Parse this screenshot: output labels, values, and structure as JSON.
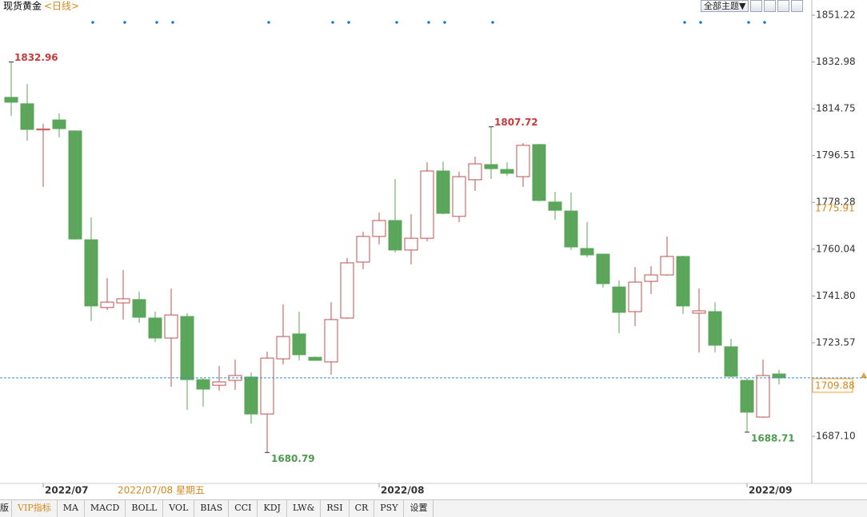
{
  "header": {
    "title": "现货黄金",
    "period": "<日线>"
  },
  "toolbar": {
    "theme": "全部主题▼"
  },
  "tabs": [
    "版",
    "VIP指标",
    "MA",
    "MACD",
    "BOLL",
    "VOL",
    "BIAS",
    "CCI",
    "KDJ",
    "LW&",
    "RSI",
    "CR",
    "PSY",
    "设置"
  ],
  "chart_data": {
    "type": "candlestick",
    "categories": [
      null,
      null,
      "2022/07",
      null,
      null,
      null,
      null,
      null,
      null,
      null,
      null,
      null,
      null,
      null,
      null,
      null,
      null,
      null,
      null,
      null,
      null,
      null,
      null,
      "2022/08",
      null,
      null,
      null,
      null,
      null,
      null,
      null,
      null,
      null,
      null,
      null,
      null,
      null,
      null,
      null,
      null,
      null,
      null,
      null,
      null,
      null,
      null,
      "2022/09",
      null,
      null
    ],
    "open": [
      1819.2,
      1816.7,
      1806.5,
      1810.4,
      1806.1,
      1763.7,
      1737.3,
      1739.1,
      1740.4,
      1733.2,
      1725.4,
      1733.8,
      1709.2,
      1707.0,
      1708.9,
      1710.2,
      1695.8,
      1717.3,
      1727.0,
      1717.9,
      1716.1,
      1733.2,
      1755.0,
      1765.0,
      1771.2,
      1759.7,
      1764.3,
      1790.5,
      1772.8,
      1787.1,
      1793.0,
      1791.1,
      1788.3,
      1800.8,
      1778.4,
      1774.9,
      1760.3,
      1758.1,
      1745.3,
      1735.7,
      1747.5,
      1750.0,
      1757.2,
      1735.1,
      1735.7,
      1722.0,
      1708.9,
      1694.6,
      1711.4
    ],
    "high": [
      1832.96,
      1824.4,
      1808.9,
      1812.9,
      1806.3,
      1772.4,
      1748.8,
      1751.9,
      1743.5,
      1735.7,
      1744.7,
      1735.1,
      1709.8,
      1714.5,
      1717.0,
      1712.0,
      1720.1,
      1738.5,
      1735.7,
      1718.2,
      1739.4,
      1756.6,
      1766.8,
      1774.3,
      1787.4,
      1773.7,
      1793.9,
      1794.2,
      1790.2,
      1796.1,
      1807.72,
      1793.9,
      1801.4,
      1801.1,
      1782.4,
      1782.1,
      1770.6,
      1758.3,
      1747.8,
      1753.1,
      1753.4,
      1765.0,
      1757.5,
      1744.7,
      1739.4,
      1725.1,
      1709.8,
      1717.0,
      1713.0
    ],
    "low": [
      1812.0,
      1802.3,
      1784.3,
      1803.6,
      1763.8,
      1732.0,
      1736.3,
      1732.6,
      1731.3,
      1723.9,
      1706.4,
      1697.4,
      1698.6,
      1704.9,
      1705.2,
      1692.1,
      1680.79,
      1715.1,
      1716.7,
      1716.5,
      1711.1,
      1732.9,
      1752.2,
      1761.9,
      1758.7,
      1754.1,
      1763.1,
      1773.7,
      1770.6,
      1782.7,
      1787.4,
      1788.6,
      1784.3,
      1778.7,
      1771.5,
      1759.7,
      1756.9,
      1745.0,
      1727.3,
      1730.1,
      1742.5,
      1749.7,
      1734.8,
      1719.8,
      1719.8,
      1710.2,
      1688.71,
      1694.3,
      1707.4
    ],
    "close": [
      1817.3,
      1806.7,
      1806.9,
      1807.0,
      1764.0,
      1737.9,
      1739.4,
      1740.7,
      1733.5,
      1725.4,
      1734.4,
      1709.2,
      1705.5,
      1708.3,
      1710.8,
      1695.8,
      1717.6,
      1726.0,
      1718.9,
      1716.7,
      1732.6,
      1754.7,
      1765.0,
      1771.2,
      1759.7,
      1764.3,
      1790.5,
      1774.0,
      1788.3,
      1793.3,
      1791.4,
      1789.6,
      1800.5,
      1779.0,
      1775.2,
      1760.9,
      1757.8,
      1746.6,
      1735.4,
      1747.2,
      1750.0,
      1757.2,
      1737.9,
      1736.0,
      1722.6,
      1710.5,
      1696.5,
      1710.8,
      1709.88
    ],
    "up_color": "#c0504d",
    "down_color": "#5ba65b",
    "reference_price": 1775.91,
    "cursor_label": "2022/07/08 星期五",
    "ylim": [
      1668.74,
      1851.22
    ],
    "yticks": [
      1851.22,
      1832.98,
      1814.75,
      1796.51,
      1778.28,
      1760.04,
      {
        "value": 1741.8,
        "label": "1741.80"
      },
      1723.57,
      {
        "value": 1687.1,
        "label": "1687.10"
      }
    ],
    "grid": false
  }
}
